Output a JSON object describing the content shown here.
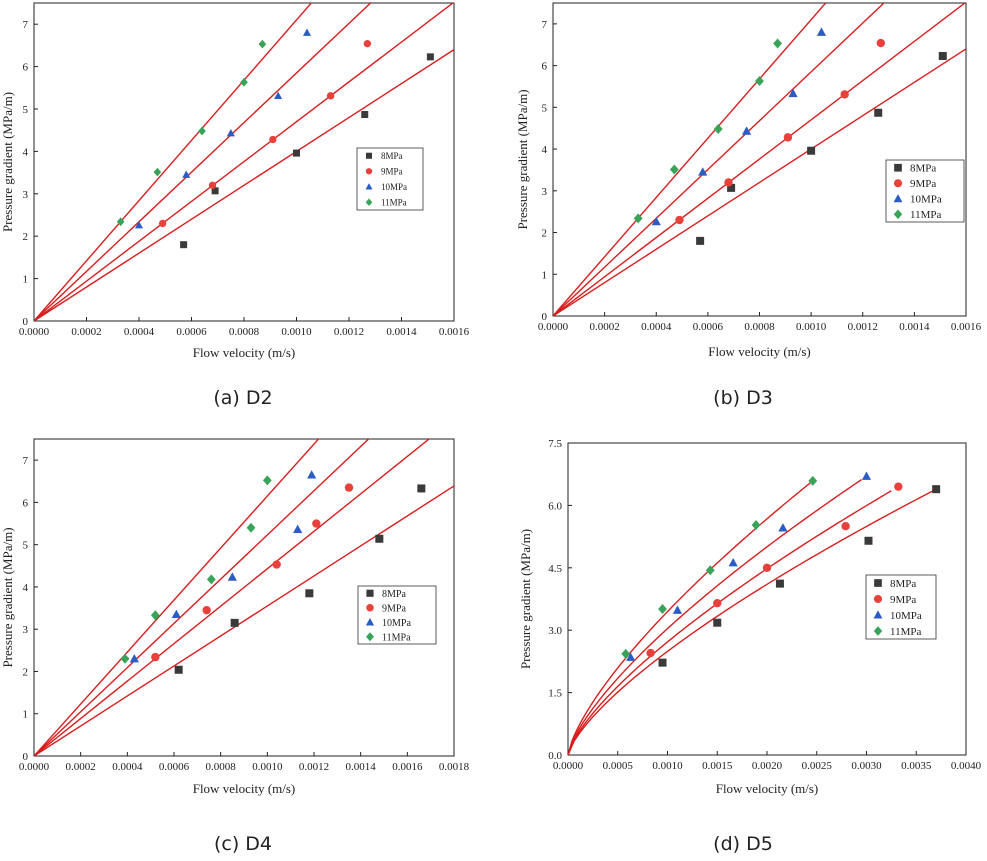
{
  "colors": {
    "8MPa": "#3a3a3a",
    "9MPa": "#e8403a",
    "10MPa": "#2a5cc4",
    "11MPa": "#3aa35a",
    "fit": "#d81e1e"
  },
  "markers": {
    "8MPa": "square",
    "9MPa": "circle",
    "10MPa": "triangle",
    "11MPa": "diamond"
  },
  "chart_data": [
    {
      "type": "scatter",
      "caption": "(a) D2",
      "xlabel": "Flow velocity (m/s)",
      "ylabel": "Pressure gradient (MPa/m)",
      "xlim": [
        0,
        0.0016
      ],
      "ylim": [
        0,
        7.5
      ],
      "xticks": [
        "0.0000",
        "0.0002",
        "0.0004",
        "0.0006",
        "0.0008",
        "0.0010",
        "0.0012",
        "0.0014",
        "0.0016"
      ],
      "yticks": [
        "0",
        "1",
        "2",
        "3",
        "4",
        "5",
        "6",
        "7"
      ],
      "legend": [
        "8MPa",
        "9MPa",
        "10MPa",
        "11MPa"
      ],
      "series": [
        {
          "name": "8MPa",
          "x": [
            0.00057,
            0.00069,
            0.001,
            0.00126,
            0.00151
          ],
          "y": [
            1.8,
            3.07,
            3.96,
            4.87,
            6.23
          ],
          "fit_slope": 4000
        },
        {
          "name": "9MPa",
          "x": [
            0.00049,
            0.00068,
            0.00091,
            0.00113,
            0.00127
          ],
          "y": [
            2.3,
            3.2,
            4.28,
            5.31,
            6.54
          ],
          "fit_slope": 4700
        },
        {
          "name": "10MPa",
          "x": [
            0.0004,
            0.00058,
            0.00075,
            0.00093,
            0.00104
          ],
          "y": [
            2.26,
            3.45,
            4.43,
            5.31,
            6.8
          ],
          "fit_slope": 5850
        },
        {
          "name": "11MPa",
          "x": [
            0.00033,
            0.00047,
            0.00064,
            0.0008,
            0.00087
          ],
          "y": [
            2.34,
            3.51,
            4.48,
            5.63,
            6.53
          ],
          "fit_slope": 7100
        }
      ]
    },
    {
      "type": "scatter",
      "caption": "(b) D3",
      "xlabel": "Flow velocity (m/s)",
      "ylabel": "Pressure gradient (MPa/m)",
      "xlim": [
        0,
        0.0016
      ],
      "ylim": [
        0,
        7.5
      ],
      "xticks": [
        "0.0000",
        "0.0002",
        "0.0004",
        "0.0006",
        "0.0008",
        "0.0010",
        "0.0012",
        "0.0014",
        "0.0016"
      ],
      "yticks": [
        "0",
        "1",
        "2",
        "3",
        "4",
        "5",
        "6",
        "7"
      ],
      "legend": [
        "8MPa",
        "9MPa",
        "10MPa",
        "11MPa"
      ],
      "series": [
        {
          "name": "8MPa",
          "x": [
            0.00057,
            0.00069,
            0.001,
            0.00126,
            0.00151
          ],
          "y": [
            1.8,
            3.07,
            3.96,
            4.87,
            6.23
          ],
          "fit_slope": 4000
        },
        {
          "name": "9MPa",
          "x": [
            0.00049,
            0.00068,
            0.00091,
            0.00113,
            0.00127
          ],
          "y": [
            2.3,
            3.2,
            4.28,
            5.31,
            6.54
          ],
          "fit_slope": 4700
        },
        {
          "name": "10MPa",
          "x": [
            0.0004,
            0.00058,
            0.00075,
            0.00093,
            0.00104
          ],
          "y": [
            2.26,
            3.45,
            4.43,
            5.33,
            6.8
          ],
          "fit_slope": 5850
        },
        {
          "name": "11MPa",
          "x": [
            0.00033,
            0.00047,
            0.00064,
            0.0008,
            0.00087
          ],
          "y": [
            2.34,
            3.51,
            4.48,
            5.63,
            6.53
          ],
          "fit_slope": 7100
        }
      ]
    },
    {
      "type": "scatter",
      "caption": "(c) D4",
      "xlabel": "Flow velocity (m/s)",
      "ylabel": "Pressure gradient (MPa/m)",
      "xlim": [
        0,
        0.0018
      ],
      "ylim": [
        0,
        7.5
      ],
      "xticks": [
        "0.0000",
        "0.0002",
        "0.0004",
        "0.0006",
        "0.0008",
        "0.0010",
        "0.0012",
        "0.0014",
        "0.0016",
        "0.0018"
      ],
      "yticks": [
        "0",
        "1",
        "2",
        "3",
        "4",
        "5",
        "6",
        "7"
      ],
      "legend": [
        "8MPa",
        "9MPa",
        "10MPa",
        "11MPa"
      ],
      "series": [
        {
          "name": "8MPa",
          "x": [
            0.00062,
            0.00086,
            0.00118,
            0.00148,
            0.00166
          ],
          "y": [
            2.04,
            3.15,
            3.85,
            5.14,
            6.33
          ],
          "fit_slope": 3550
        },
        {
          "name": "9MPa",
          "x": [
            0.00052,
            0.00074,
            0.00104,
            0.00121,
            0.00135
          ],
          "y": [
            2.34,
            3.45,
            4.53,
            5.5,
            6.35
          ],
          "fit_slope": 4430
        },
        {
          "name": "10MPa",
          "x": [
            0.00043,
            0.00061,
            0.00085,
            0.00113,
            0.00119
          ],
          "y": [
            2.3,
            3.35,
            4.23,
            5.36,
            6.65
          ],
          "fit_slope": 5230
        },
        {
          "name": "11MPa",
          "x": [
            0.00039,
            0.00052,
            0.00076,
            0.00093,
            0.001
          ],
          "y": [
            2.3,
            3.33,
            4.18,
            5.4,
            6.52
          ],
          "fit_slope": 6150
        }
      ]
    },
    {
      "type": "scatter",
      "caption": "(d) D5",
      "xlabel": "Flow velocity (m/s)",
      "ylabel": "Pressure gradient (MPa/m)",
      "xlim": [
        0,
        0.004
      ],
      "ylim": [
        0,
        7.5
      ],
      "xticks": [
        "0.0000",
        "0.0005",
        "0.0010",
        "0.0015",
        "0.0020",
        "0.0025",
        "0.0030",
        "0.0035",
        "0.0040"
      ],
      "yticks": [
        "0.0",
        "1.5",
        "3.0",
        "4.5",
        "6.0",
        "7.5"
      ],
      "legend": [
        "8MPa",
        "9MPa",
        "10MPa",
        "11MPa"
      ],
      "series": [
        {
          "name": "8MPa",
          "x": [
            0.00095,
            0.0015,
            0.00213,
            0.00302,
            0.0037
          ],
          "y": [
            2.22,
            3.18,
            4.12,
            5.15,
            6.39
          ],
          "fit_end": 0.00367,
          "fit_a": 18,
          "fit_b": 0.05
        },
        {
          "name": "9MPa",
          "x": [
            0.00083,
            0.0015,
            0.002,
            0.00279,
            0.00332
          ],
          "y": [
            2.45,
            3.65,
            4.5,
            5.5,
            6.45
          ],
          "fit_end": 0.00325,
          "fit_a": 20,
          "fit_b": 0.08
        },
        {
          "name": "10MPa",
          "x": [
            0.00063,
            0.0011,
            0.00166,
            0.00216,
            0.003
          ],
          "y": [
            2.35,
            3.48,
            4.62,
            5.46,
            6.7
          ],
          "fit_end": 0.00295,
          "fit_a": 15,
          "fit_b": 0.13
        },
        {
          "name": "11MPa",
          "x": [
            0.00058,
            0.00095,
            0.00143,
            0.00189,
            0.00246
          ],
          "y": [
            2.43,
            3.51,
            4.44,
            5.53,
            6.59
          ],
          "fit_end": 0.00245,
          "fit_a": 15,
          "fit_b": 0.15
        }
      ]
    }
  ]
}
